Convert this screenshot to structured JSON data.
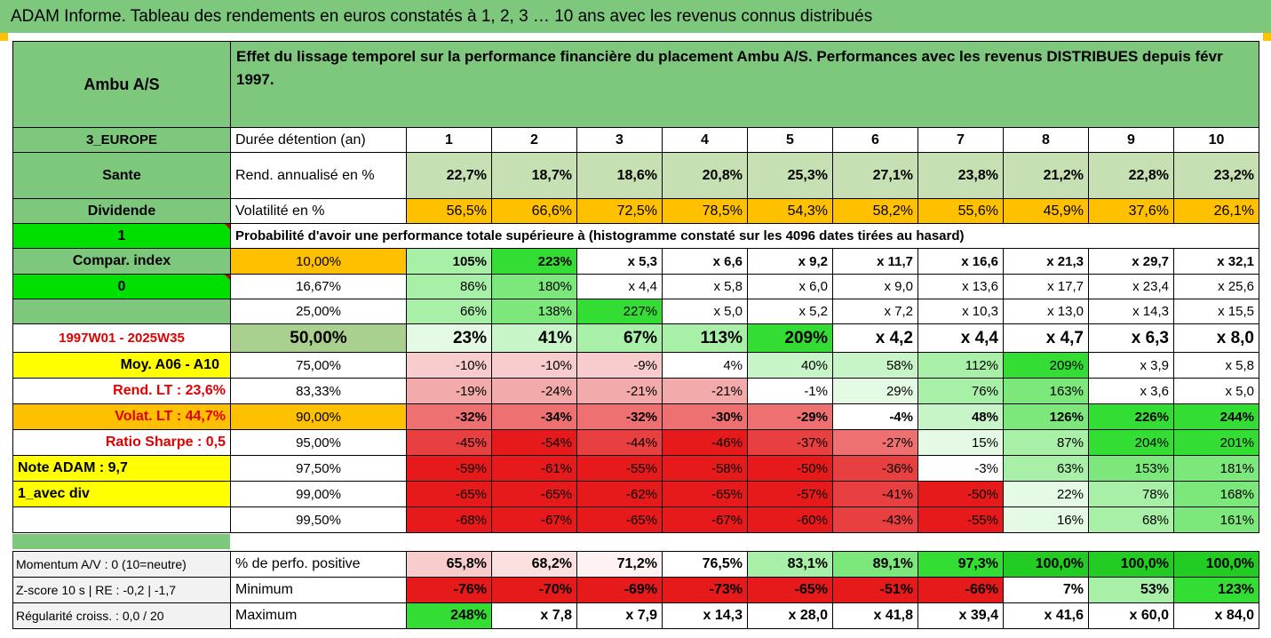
{
  "title": "ADAM Informe. Tableau des rendements en euros constatés à 1, 2, 3 … 10 ans avec les revenus connus distribués",
  "header": {
    "fund_name": "Ambu A/S",
    "description": "Effet du lissage temporel sur la performance financière du placement Ambu A/S. Performances avec les revenus DISTRIBUES depuis févr 1997."
  },
  "years": [
    "1",
    "2",
    "3",
    "4",
    "5",
    "6",
    "7",
    "8",
    "9",
    "10"
  ],
  "side": {
    "region": "3_EUROPE",
    "sector": "Sante",
    "dividend": "Dividende",
    "one": "1",
    "compar_index": "Compar. index",
    "zero": "0",
    "period": "1997W01 - 2025W35",
    "moy": "Moy. A06 - A10",
    "rend_lt": "Rend. LT :   23,6%",
    "volat_lt": "Volat. LT :   44,7%",
    "sharpe": "Ratio Sharpe :    0,5",
    "note": "Note ADAM : 9,7",
    "avec_div": "1_avec div"
  },
  "rows": {
    "duree_label": "Durée détention (an)",
    "rend_label": "Rend. annualisé en %",
    "rend_values": [
      "22,7%",
      "18,7%",
      "18,6%",
      "20,8%",
      "25,3%",
      "27,1%",
      "23,8%",
      "21,2%",
      "22,8%",
      "23,2%"
    ],
    "vol_label": "Volatilité en %",
    "vol_values": [
      "56,5%",
      "66,6%",
      "72,5%",
      "78,5%",
      "54,3%",
      "58,2%",
      "55,6%",
      "45,9%",
      "37,6%",
      "26,1%"
    ],
    "proba_label": "Probabilité d'avoir une performance totale supérieure à (histogramme constaté sur les 4096 dates tirées au hasard)"
  },
  "quantiles": [
    {
      "pct": "10,00%",
      "values": [
        "105%",
        "223%",
        "x 5,3",
        "x 6,6",
        "x 9,2",
        "x 11,7",
        "x 16,6",
        "x 21,3",
        "x 29,7",
        "x 32,1"
      ]
    },
    {
      "pct": "16,67%",
      "values": [
        "86%",
        "180%",
        "x 4,4",
        "x 5,8",
        "x 6,0",
        "x 9,0",
        "x 13,6",
        "x 17,7",
        "x 23,4",
        "x 25,6"
      ]
    },
    {
      "pct": "25,00%",
      "values": [
        "66%",
        "138%",
        "227%",
        "x 5,0",
        "x 5,2",
        "x 7,2",
        "x 10,3",
        "x 13,0",
        "x 14,3",
        "x 15,5"
      ]
    },
    {
      "pct": "50,00%",
      "values": [
        "23%",
        "41%",
        "67%",
        "113%",
        "209%",
        "x 4,2",
        "x 4,4",
        "x 4,7",
        "x 6,3",
        "x 8,0"
      ]
    },
    {
      "pct": "75,00%",
      "values": [
        "-10%",
        "-10%",
        "-9%",
        "4%",
        "40%",
        "58%",
        "112%",
        "209%",
        "x 3,9",
        "x 5,8"
      ]
    },
    {
      "pct": "83,33%",
      "values": [
        "-19%",
        "-24%",
        "-21%",
        "-21%",
        "-1%",
        "29%",
        "76%",
        "163%",
        "x 3,6",
        "x 5,0"
      ]
    },
    {
      "pct": "90,00%",
      "values": [
        "-32%",
        "-34%",
        "-32%",
        "-30%",
        "-29%",
        "-4%",
        "48%",
        "126%",
        "226%",
        "244%"
      ]
    },
    {
      "pct": "95,00%",
      "values": [
        "-45%",
        "-54%",
        "-44%",
        "-46%",
        "-37%",
        "-27%",
        "15%",
        "87%",
        "204%",
        "201%"
      ]
    },
    {
      "pct": "97,50%",
      "values": [
        "-59%",
        "-61%",
        "-55%",
        "-58%",
        "-50%",
        "-36%",
        "-3%",
        "63%",
        "153%",
        "181%"
      ]
    },
    {
      "pct": "99,00%",
      "values": [
        "-65%",
        "-65%",
        "-62%",
        "-65%",
        "-57%",
        "-41%",
        "-50%",
        "22%",
        "78%",
        "168%"
      ]
    },
    {
      "pct": "99,50%",
      "values": [
        "-68%",
        "-67%",
        "-65%",
        "-67%",
        "-60%",
        "-43%",
        "-55%",
        "16%",
        "68%",
        "161%"
      ]
    }
  ],
  "bottom": [
    {
      "side": "Momentum A/V : 0 (10=neutre)",
      "label": "% de perfo. positive",
      "values": [
        "65,8%",
        "68,2%",
        "71,2%",
        "76,5%",
        "83,1%",
        "89,1%",
        "97,3%",
        "100,0%",
        "100,0%",
        "100,0%"
      ]
    },
    {
      "side": "Z-score 10 s  |  RE : -0,2  |  -1,7",
      "label": "Minimum",
      "values": [
        "-76%",
        "-70%",
        "-69%",
        "-73%",
        "-65%",
        "-51%",
        "-66%",
        "7%",
        "53%",
        "123%"
      ]
    },
    {
      "side": "Régularité croiss. : 0,0 / 20",
      "label": "Maximum",
      "values": [
        "248%",
        "x 7,8",
        "x 7,9",
        "x 14,3",
        "x 28,0",
        "x 41,8",
        "x 39,4",
        "x 41,6",
        "x 60,0",
        "x 84,0"
      ]
    }
  ],
  "colors": {
    "header_green": "#7dc87d",
    "orange": "#ffc000",
    "yellow": "#ffff00",
    "bright_green": "#00e000",
    "red": "#e00000"
  }
}
